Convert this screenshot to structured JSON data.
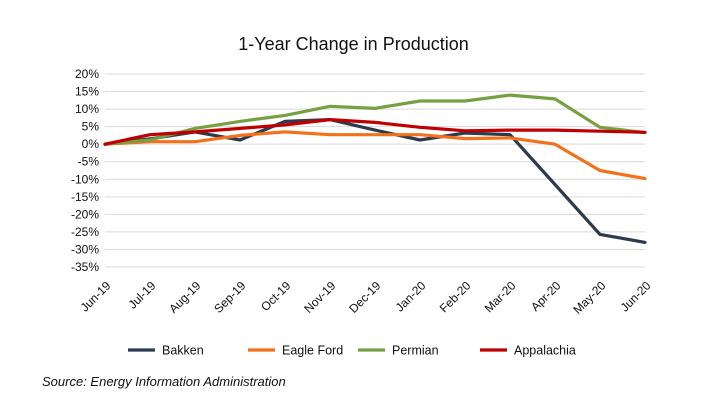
{
  "chart_data": {
    "type": "line",
    "title": "1-Year Change in Production",
    "xlabel": "",
    "ylabel": "",
    "categories": [
      "Jun-19",
      "Jul-19",
      "Aug-19",
      "Sep-19",
      "Oct-19",
      "Nov-19",
      "Dec-19",
      "Jan-20",
      "Feb-20",
      "Mar-20",
      "Apr-20",
      "May-20",
      "Jun-20"
    ],
    "y_ticks": [
      "20%",
      "15%",
      "10%",
      "5%",
      "0%",
      "-5%",
      "-10%",
      "-15%",
      "-20%",
      "-25%",
      "-30%",
      "-35%"
    ],
    "ylim": [
      -35,
      20
    ],
    "grid": true,
    "legend_position": "bottom",
    "series": [
      {
        "name": "Bakken",
        "color": "#2b3a4e",
        "values": [
          0,
          1.5,
          3.5,
          1.2,
          6.5,
          7,
          4,
          1.2,
          3.2,
          2.7,
          -11.5,
          -25.7,
          -28
        ]
      },
      {
        "name": "Eagle Ford",
        "color": "#f4711c",
        "values": [
          0,
          0.7,
          0.7,
          2.5,
          3.5,
          2.7,
          2.7,
          2.7,
          1.6,
          1.8,
          0,
          -7.5,
          -9.8
        ]
      },
      {
        "name": "Permian",
        "color": "#77a043",
        "values": [
          0,
          1.2,
          4.5,
          6.5,
          8.2,
          10.8,
          10.2,
          12.3,
          12.3,
          14,
          12.9,
          4.8,
          3.3
        ]
      },
      {
        "name": "Appalachia",
        "color": "#c00000",
        "values": [
          0,
          2.7,
          3.5,
          4.5,
          5.5,
          7,
          6.2,
          4.8,
          3.8,
          4,
          4,
          3.7,
          3.4
        ]
      }
    ]
  },
  "source": "Source: Energy Information Administration"
}
